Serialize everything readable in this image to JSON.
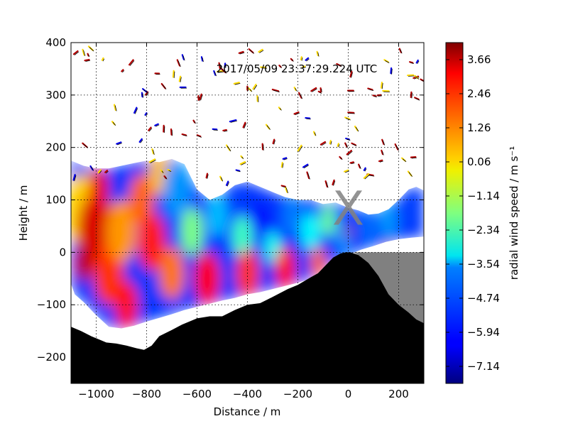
{
  "chart_data": {
    "type": "heatmap",
    "timestamp": "2017/05/09 23:37:29.224 UTC",
    "xlabel": "Distance / m",
    "ylabel": "Height / m",
    "xlim": [
      -1100,
      300
    ],
    "ylim": [
      -250,
      400
    ],
    "xticks": [
      -1000,
      -800,
      -600,
      -400,
      -200,
      0,
      200
    ],
    "xtick_labels": [
      "−1000",
      "−800",
      "−600",
      "−400",
      "−200",
      "0",
      "200"
    ],
    "yticks": [
      -200,
      -100,
      0,
      100,
      200,
      300,
      400
    ],
    "ytick_labels": [
      "−200",
      "−100",
      "0",
      "100",
      "200",
      "300",
      "400"
    ],
    "grid": true,
    "marker": {
      "label": "X",
      "x": 0,
      "y": 85,
      "color": "#808080"
    },
    "colorbar": {
      "label": "radial wind speed / m s⁻¹",
      "vmin": -7.74,
      "vmax": 4.26,
      "colormap": "jet",
      "ticks": [
        3.66,
        2.46,
        1.26,
        0.06,
        -1.14,
        -2.34,
        -3.54,
        -4.74,
        -5.94,
        -7.14
      ],
      "tick_labels": [
        "3.66",
        "2.46",
        "1.26",
        "0.06",
        "−1.14",
        "−2.34",
        "−3.54",
        "−4.74",
        "−5.94",
        "−7.14"
      ]
    },
    "terrain_profile": [
      [
        -1100,
        -142
      ],
      [
        -1060,
        -150
      ],
      [
        -1020,
        -160
      ],
      [
        -980,
        -168
      ],
      [
        -960,
        -172
      ],
      [
        -920,
        -174
      ],
      [
        -880,
        -178
      ],
      [
        -840,
        -183
      ],
      [
        -810,
        -186
      ],
      [
        -780,
        -178
      ],
      [
        -750,
        -160
      ],
      [
        -700,
        -148
      ],
      [
        -660,
        -138
      ],
      [
        -600,
        -126
      ],
      [
        -550,
        -122
      ],
      [
        -500,
        -122
      ],
      [
        -450,
        -110
      ],
      [
        -400,
        -100
      ],
      [
        -350,
        -97
      ],
      [
        -320,
        -90
      ],
      [
        -280,
        -80
      ],
      [
        -240,
        -70
      ],
      [
        -200,
        -62
      ],
      [
        -150,
        -48
      ],
      [
        -120,
        -40
      ],
      [
        -90,
        -25
      ],
      [
        -60,
        -10
      ],
      [
        -30,
        -2
      ],
      [
        -10,
        0
      ],
      [
        10,
        0
      ],
      [
        40,
        -5
      ],
      [
        80,
        -20
      ],
      [
        120,
        -45
      ],
      [
        160,
        -80
      ],
      [
        200,
        -100
      ],
      [
        240,
        -115
      ],
      [
        270,
        -128
      ],
      [
        300,
        -135
      ]
    ],
    "shadow_region": [
      [
        20,
        0
      ],
      [
        300,
        0
      ],
      [
        300,
        -135
      ],
      [
        270,
        -128
      ],
      [
        240,
        -115
      ],
      [
        200,
        -100
      ],
      [
        160,
        -80
      ],
      [
        120,
        -45
      ],
      [
        80,
        -20
      ],
      [
        40,
        -5
      ]
    ],
    "scan_region": {
      "upper": [
        [
          -1100,
          175
        ],
        [
          -1050,
          165
        ],
        [
          -1000,
          160
        ],
        [
          -950,
          160
        ],
        [
          -900,
          165
        ],
        [
          -850,
          170
        ],
        [
          -800,
          175
        ],
        [
          -750,
          172
        ],
        [
          -700,
          178
        ],
        [
          -650,
          168
        ],
        [
          -600,
          120
        ],
        [
          -550,
          100
        ],
        [
          -500,
          110
        ],
        [
          -450,
          128
        ],
        [
          -400,
          135
        ],
        [
          -350,
          125
        ],
        [
          -300,
          115
        ],
        [
          -250,
          105
        ],
        [
          -200,
          100
        ],
        [
          -150,
          100
        ],
        [
          -100,
          92
        ],
        [
          -50,
          95
        ],
        [
          0,
          85
        ],
        [
          40,
          80
        ],
        [
          80,
          72
        ],
        [
          120,
          74
        ],
        [
          160,
          82
        ],
        [
          200,
          100
        ],
        [
          240,
          120
        ],
        [
          270,
          125
        ],
        [
          300,
          118
        ]
      ],
      "lower": [
        [
          300,
          30
        ],
        [
          250,
          28
        ],
        [
          200,
          25
        ],
        [
          150,
          20
        ],
        [
          100,
          12
        ],
        [
          50,
          5
        ],
        [
          0,
          -5
        ],
        [
          -40,
          -15
        ],
        [
          -80,
          -30
        ],
        [
          -120,
          -42
        ],
        [
          -160,
          -52
        ],
        [
          -200,
          -58
        ],
        [
          -250,
          -64
        ],
        [
          -300,
          -70
        ],
        [
          -350,
          -76
        ],
        [
          -400,
          -80
        ],
        [
          -450,
          -87
        ],
        [
          -500,
          -92
        ],
        [
          -550,
          -98
        ],
        [
          -600,
          -104
        ],
        [
          -650,
          -110
        ],
        [
          -700,
          -118
        ],
        [
          -750,
          -125
        ],
        [
          -800,
          -132
        ],
        [
          -850,
          -140
        ],
        [
          -900,
          -145
        ],
        [
          -950,
          -142
        ],
        [
          -1000,
          -120
        ],
        [
          -1050,
          -95
        ],
        [
          -1085,
          -80
        ],
        [
          -1100,
          -60
        ]
      ]
    },
    "wind_field": [
      {
        "x": -1050,
        "y": 80,
        "v": 0.3,
        "r": 70
      },
      {
        "x": -1000,
        "y": 40,
        "v": 3.2,
        "r": 75
      },
      {
        "x": -990,
        "y": 120,
        "v": 3.0,
        "r": 40
      },
      {
        "x": -950,
        "y": -40,
        "v": 2.2,
        "r": 60
      },
      {
        "x": -900,
        "y": 40,
        "v": 1.0,
        "r": 60
      },
      {
        "x": -880,
        "y": -100,
        "v": 2.6,
        "r": 45
      },
      {
        "x": -820,
        "y": 100,
        "v": 1.6,
        "r": 50
      },
      {
        "x": -780,
        "y": 20,
        "v": 2.4,
        "r": 55
      },
      {
        "x": -750,
        "y": 150,
        "v": 0.5,
        "r": 40
      },
      {
        "x": -700,
        "y": -40,
        "v": 1.4,
        "r": 50
      },
      {
        "x": -680,
        "y": 120,
        "v": -4.5,
        "r": 55
      },
      {
        "x": -620,
        "y": 40,
        "v": -1.8,
        "r": 45
      },
      {
        "x": -560,
        "y": -50,
        "v": 2.8,
        "r": 50
      },
      {
        "x": -520,
        "y": 70,
        "v": -4.0,
        "r": 40
      },
      {
        "x": -450,
        "y": 100,
        "v": -5.5,
        "r": 35
      },
      {
        "x": -420,
        "y": 30,
        "v": -2.5,
        "r": 40
      },
      {
        "x": -400,
        "y": -40,
        "v": 2.2,
        "r": 45
      },
      {
        "x": -350,
        "y": 60,
        "v": -6.2,
        "r": 35
      },
      {
        "x": -300,
        "y": 10,
        "v": -3.0,
        "r": 30
      },
      {
        "x": -250,
        "y": -30,
        "v": 2.6,
        "r": 40
      },
      {
        "x": -220,
        "y": 70,
        "v": -4.8,
        "r": 40
      },
      {
        "x": -150,
        "y": 40,
        "v": -3.2,
        "r": 35
      },
      {
        "x": -120,
        "y": -20,
        "v": 1.6,
        "r": 30
      },
      {
        "x": -80,
        "y": 60,
        "v": -2.0,
        "r": 30
      },
      {
        "x": -20,
        "y": 30,
        "v": -4.5,
        "r": 30
      },
      {
        "x": 0,
        "y": 40,
        "v": 3.8,
        "r": 12
      },
      {
        "x": 80,
        "y": 50,
        "v": -5.0,
        "r": 35
      },
      {
        "x": 160,
        "y": 60,
        "v": -4.5,
        "r": 35
      },
      {
        "x": 160,
        "y": 12,
        "v": 3.9,
        "r": 10
      },
      {
        "x": 240,
        "y": 80,
        "v": -5.5,
        "r": 40
      },
      {
        "x": -1050,
        "y": -20,
        "v": 3.5,
        "r": 35
      }
    ],
    "noise_speckles": 140
  }
}
